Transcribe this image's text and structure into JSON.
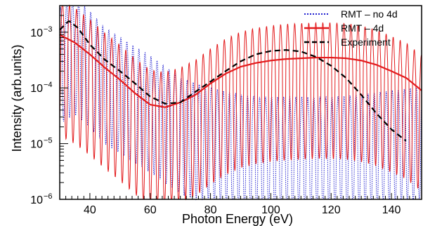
{
  "chart_data": {
    "type": "line",
    "title": "",
    "xlabel": "Photon Energy (eV)",
    "ylabel": "Intensity (arb.units)",
    "xlim": [
      30,
      150
    ],
    "ylim": [
      1e-06,
      0.003
    ],
    "yscale": "log",
    "grid": false,
    "legend_position": "top-right",
    "x_ticks": [
      40,
      60,
      80,
      100,
      120,
      140
    ],
    "y_ticks": [
      {
        "base": "10",
        "exp": "−6",
        "value": 1e-06
      },
      {
        "base": "10",
        "exp": "−5",
        "value": 1e-05
      },
      {
        "base": "10",
        "exp": "−4",
        "value": 0.0001
      },
      {
        "base": "10",
        "exp": "−3",
        "value": 0.001
      }
    ],
    "colors": {
      "no4d": "#1f1fd0",
      "with4d": "#e31a1c",
      "experiment": "#000000"
    },
    "series": [
      {
        "name": "RMT – no 4d",
        "style": "dotted",
        "color": "#1f1fd0",
        "x": [
          30,
          35,
          40,
          45,
          50,
          55,
          60,
          65,
          70,
          75,
          80,
          85,
          90,
          95,
          100,
          105,
          110,
          115,
          120,
          125,
          130,
          135,
          140,
          145,
          150
        ],
        "y": [
          0.0008,
          0.0012,
          0.0007,
          0.00035,
          0.00024,
          0.00016,
          0.00011,
          7e-05,
          4.5e-05,
          3.5e-05,
          3e-05,
          2.5e-05,
          2.2e-05,
          2e-05,
          2e-05,
          2e-05,
          2e-05,
          2e-05,
          2e-05,
          2.1e-05,
          2.2e-05,
          2.4e-05,
          2.6e-05,
          2.8e-05,
          3e-05
        ]
      },
      {
        "name": "RMT – 4d",
        "style": "solid",
        "color": "#e31a1c",
        "x": [
          30,
          35,
          40,
          45,
          50,
          55,
          60,
          65,
          70,
          75,
          80,
          85,
          90,
          95,
          100,
          105,
          110,
          115,
          120,
          125,
          130,
          135,
          140,
          145,
          150
        ],
        "y": [
          0.0009,
          0.00065,
          0.0004,
          0.00023,
          0.00014,
          8e-05,
          5e-05,
          4.5e-05,
          5.5e-05,
          7.5e-05,
          0.00012,
          0.00018,
          0.00024,
          0.00028,
          0.00031,
          0.00033,
          0.00034,
          0.00035,
          0.00035,
          0.00034,
          0.00031,
          0.00026,
          0.0002,
          0.00015,
          9e-05
        ]
      },
      {
        "name": "Experiment",
        "style": "dashed",
        "color": "#000000",
        "x": [
          30,
          33,
          36,
          40,
          45,
          50,
          55,
          60,
          65,
          70,
          75,
          80,
          85,
          90,
          95,
          100,
          105,
          110,
          115,
          120,
          125,
          130,
          135,
          140,
          145
        ],
        "y": [
          0.0011,
          0.0016,
          0.0012,
          0.0006,
          0.00032,
          0.0002,
          0.00012,
          7e-05,
          5.2e-05,
          5.5e-05,
          8.5e-05,
          0.00013,
          0.0002,
          0.0003,
          0.0004,
          0.00046,
          0.00048,
          0.00045,
          0.00036,
          0.00025,
          0.00015,
          7.5e-05,
          3.5e-05,
          1.8e-05,
          1.1e-05
        ]
      }
    ]
  }
}
